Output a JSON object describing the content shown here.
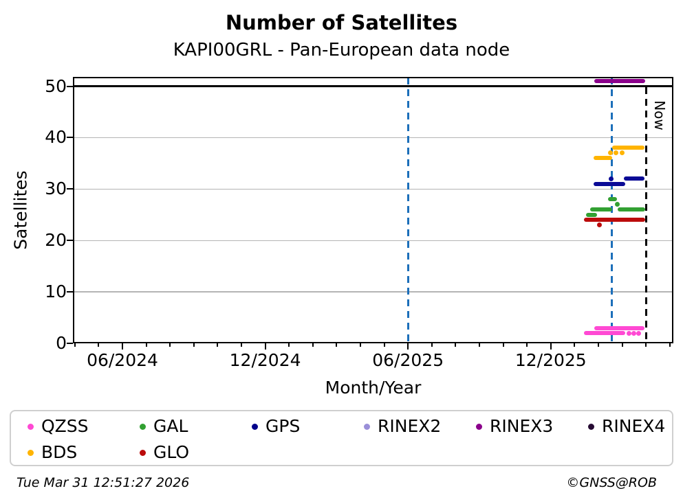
{
  "header": {
    "title": "Number of Satellites",
    "subtitle": "KAPI00GRL - Pan-European data node"
  },
  "footer": {
    "timestamp": "Tue Mar 31 12:51:27 2026",
    "credit": "©GNSS@ROB"
  },
  "now_label": "Now",
  "colors": {
    "event_line_blue": "#1c6fba",
    "now_line": "#000000",
    "grid": "#b4b4b4",
    "reference_line": "#000000"
  },
  "legend": {
    "items": [
      {
        "label": "QZSS",
        "color": "#ff49d3"
      },
      {
        "label": "GAL",
        "color": "#32a032"
      },
      {
        "label": "GPS",
        "color": "#00008b"
      },
      {
        "label": "RINEX2",
        "color": "#9a8fd8"
      },
      {
        "label": "RINEX3",
        "color": "#8b008b"
      },
      {
        "label": "RINEX4",
        "color": "#260b33"
      },
      {
        "label": "BDS",
        "color": "#ffb400"
      },
      {
        "label": "GLO",
        "color": "#bb0b0b"
      }
    ]
  },
  "chart_data": {
    "type": "line",
    "title": "Number of Satellites",
    "subtitle": "KAPI00GRL - Pan-European data node",
    "xlabel": "Month/Year",
    "ylabel": "Satellites",
    "ylim": [
      0,
      51.8
    ],
    "x_range": [
      "2024-04-01",
      "2026-05-05"
    ],
    "grid": "horizontal-only",
    "legend_position": "bottom",
    "y_ticks": [
      0,
      10,
      20,
      30,
      40,
      50
    ],
    "x_major_ticks": [
      {
        "date": "2024-06-01",
        "label": "06/2024"
      },
      {
        "date": "2024-12-01",
        "label": "12/2024"
      },
      {
        "date": "2025-06-01",
        "label": "06/2025"
      },
      {
        "date": "2025-12-01",
        "label": "12/2025"
      }
    ],
    "x_minor_tick_interval_months": 1,
    "reference_line": {
      "value": 50,
      "color": "#000000"
    },
    "vertical_lines": [
      {
        "date": "2025-06-01",
        "color": "#1c6fba",
        "style": "dashed"
      },
      {
        "date": "2026-02-18",
        "color": "#1c6fba",
        "style": "dashed"
      },
      {
        "date": "2026-03-31",
        "color": "#000000",
        "style": "dashed",
        "label": "Now"
      }
    ],
    "series": [
      {
        "name": "QZSS",
        "color": "#ff49d3",
        "segments": [
          {
            "start": "2026-01-26",
            "end": "2026-03-29",
            "value": 3
          },
          {
            "start": "2026-01-13",
            "end": "2026-03-05",
            "value": 2
          }
        ],
        "points": [
          {
            "date": "2026-03-10",
            "value": 2
          },
          {
            "date": "2026-03-16",
            "value": 2
          },
          {
            "date": "2026-03-22",
            "value": 2
          }
        ]
      },
      {
        "name": "GAL",
        "color": "#32a032",
        "segments": [
          {
            "start": "2026-01-15",
            "end": "2026-01-29",
            "value": 25
          },
          {
            "start": "2026-01-21",
            "end": "2026-02-18",
            "value": 26
          },
          {
            "start": "2026-02-13",
            "end": "2026-02-24",
            "value": 28
          },
          {
            "start": "2026-02-25",
            "end": "2026-03-30",
            "value": 26
          }
        ],
        "points": [
          {
            "date": "2026-02-25",
            "value": 27
          }
        ]
      },
      {
        "name": "GPS",
        "color": "#0a0a96",
        "segments": [
          {
            "start": "2026-01-25",
            "end": "2026-03-05",
            "value": 31
          },
          {
            "start": "2026-03-03",
            "end": "2026-03-29",
            "value": 32
          }
        ],
        "points": [
          {
            "date": "2026-02-17",
            "value": 32
          }
        ]
      },
      {
        "name": "RINEX2",
        "color": "#9a8fd8",
        "segments": [],
        "points": []
      },
      {
        "name": "RINEX3",
        "color": "#8b008b",
        "segments": [
          {
            "start": "2026-01-26",
            "end": "2026-03-30",
            "value": 51
          }
        ],
        "points": []
      },
      {
        "name": "RINEX4",
        "color": "#260b33",
        "segments": [],
        "points": []
      },
      {
        "name": "BDS",
        "color": "#ffb400",
        "segments": [
          {
            "start": "2026-01-25",
            "end": "2026-02-18",
            "value": 36
          },
          {
            "start": "2026-02-18",
            "end": "2026-03-29",
            "value": 38
          }
        ],
        "points": [
          {
            "date": "2026-02-16",
            "value": 37
          },
          {
            "date": "2026-02-23",
            "value": 37
          },
          {
            "date": "2026-03-01",
            "value": 37
          }
        ]
      },
      {
        "name": "GLO",
        "color": "#bb0b0b",
        "segments": [
          {
            "start": "2026-01-13",
            "end": "2026-03-30",
            "value": 24
          }
        ],
        "points": [
          {
            "date": "2026-02-02",
            "value": 23
          }
        ]
      }
    ]
  }
}
